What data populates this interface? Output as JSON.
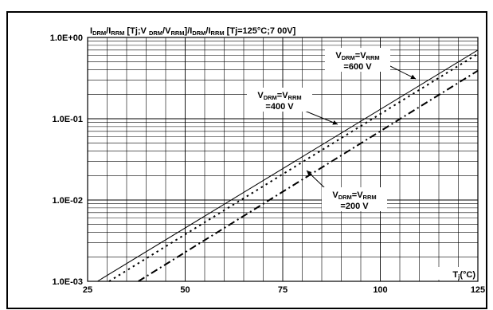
{
  "chart_data": {
    "type": "line",
    "ylabel_parts": [
      "I",
      "DRM",
      "/I",
      "RRM",
      " [Tj;V ",
      "DRM",
      "/V",
      "RRM",
      "]/I",
      "DRM",
      "/I",
      "RRM",
      " [Tj=125°C;7 00V]"
    ],
    "xlabel_parts": [
      "T",
      "j",
      "(°C)"
    ],
    "x_scale": "linear",
    "y_scale": "log",
    "xlim": [
      25,
      125
    ],
    "ylim": [
      0.001,
      1
    ],
    "x_ticks": [
      25,
      50,
      75,
      100,
      125
    ],
    "x_tick_labels": [
      "25",
      "50",
      "75",
      "100",
      "125"
    ],
    "y_ticks": [
      0.001,
      0.01,
      0.1,
      1
    ],
    "y_tick_labels": [
      "1.0E-03",
      "1.0E-02",
      "1.0E-01",
      "1.0E+00"
    ],
    "grid": true,
    "series": [
      {
        "name": "600 V",
        "style": "solid",
        "x": [
          27.5,
          125
        ],
        "y": [
          0.001,
          0.7
        ]
      },
      {
        "name": "400 V",
        "style": "dotted",
        "x": [
          30.5,
          125
        ],
        "y": [
          0.001,
          0.63
        ]
      },
      {
        "name": "200 V",
        "style": "dash-dot",
        "x": [
          38,
          125
        ],
        "y": [
          0.001,
          0.39
        ]
      }
    ],
    "annotations": [
      {
        "series": "600 V",
        "line1": [
          "V",
          "DRM",
          "=V",
          "RRM"
        ],
        "line2": "=600 V"
      },
      {
        "series": "400 V",
        "line1": [
          "V",
          "DRM",
          "=V",
          "RRM"
        ],
        "line2": "=400 V"
      },
      {
        "series": "200 V",
        "line1": [
          "V",
          "DRM",
          "=V",
          "RRM"
        ],
        "line2": "=200 V"
      }
    ]
  }
}
